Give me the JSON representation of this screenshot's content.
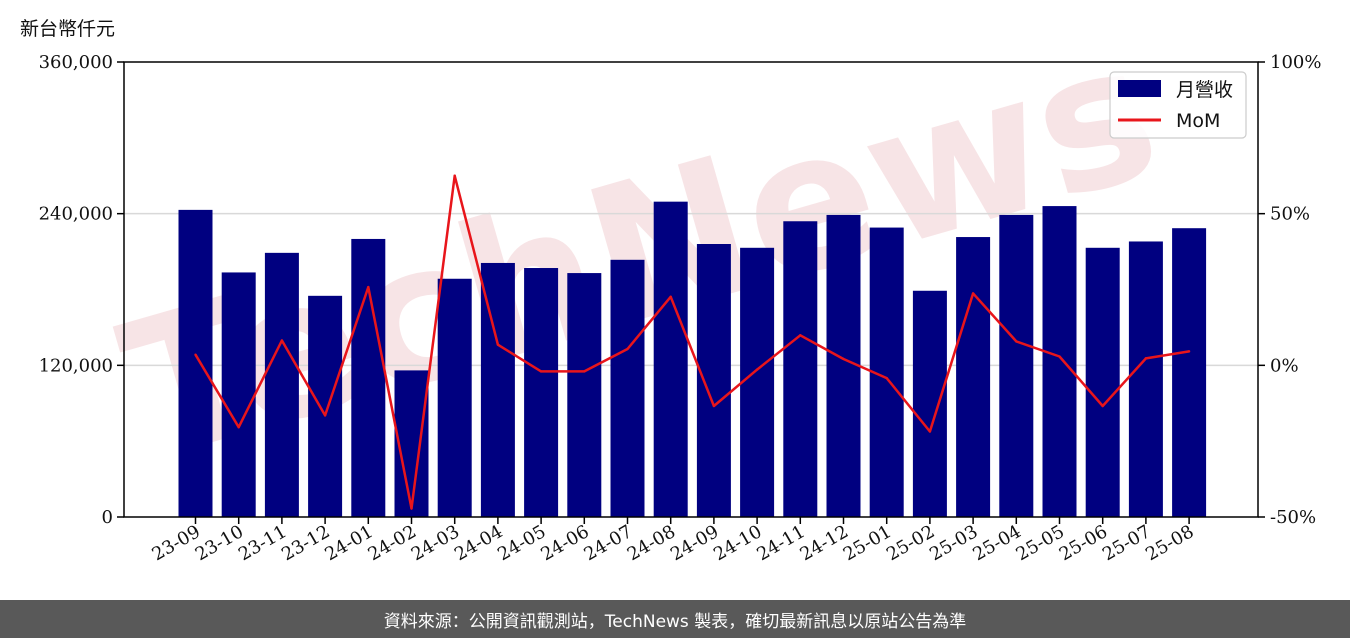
{
  "unit_label": "新台幣仟元",
  "footer_text": "資料來源：公開資訊觀測站，TechNews 製表，確切最新訊息以原站公告為準",
  "watermark_text": "TechNews",
  "colors": {
    "bar": "#000080",
    "line": "#e8151b",
    "grid": "#d9d9d9",
    "footer_bg": "#595959",
    "watermark": "#f2cfd2"
  },
  "chart_data": {
    "type": "bar",
    "categories": [
      "23-09",
      "23-10",
      "23-11",
      "23-12",
      "24-01",
      "24-02",
      "24-03",
      "24-04",
      "24-05",
      "24-06",
      "24-07",
      "24-08",
      "24-09",
      "24-10",
      "24-11",
      "24-12",
      "25-01",
      "25-02",
      "25-03",
      "25-04",
      "25-05",
      "25-06",
      "25-07",
      "25-08"
    ],
    "series": [
      {
        "name": "月營收",
        "type": "bar",
        "axis": "left",
        "values": [
          243000,
          193500,
          209000,
          175000,
          220000,
          116000,
          188500,
          201000,
          197000,
          193000,
          203500,
          249500,
          216000,
          213000,
          234000,
          239000,
          229000,
          179000,
          221500,
          239000,
          246000,
          213000,
          218000,
          228500
        ]
      },
      {
        "name": "MoM",
        "type": "line",
        "axis": "right",
        "values": [
          3.5,
          -20.4,
          8.2,
          -16.5,
          25.8,
          -47.2,
          62.5,
          6.8,
          -2.0,
          -2.0,
          5.4,
          22.6,
          -13.4,
          -1.4,
          9.9,
          2.1,
          -4.2,
          -21.8,
          23.7,
          7.9,
          2.9,
          -13.4,
          2.3,
          4.6
        ]
      }
    ],
    "y_left": {
      "lim": [
        0,
        360000
      ],
      "ticks": [
        "0",
        "120,000",
        "240,000",
        "360,000"
      ],
      "tick_values": [
        0,
        120000,
        240000,
        360000
      ]
    },
    "y_right": {
      "lim": [
        -50,
        100
      ],
      "ticks": [
        "-50%",
        "0%",
        "50%",
        "100%"
      ],
      "tick_values": [
        -50,
        0,
        50,
        100
      ]
    },
    "grid": true,
    "legend": "top-right"
  }
}
